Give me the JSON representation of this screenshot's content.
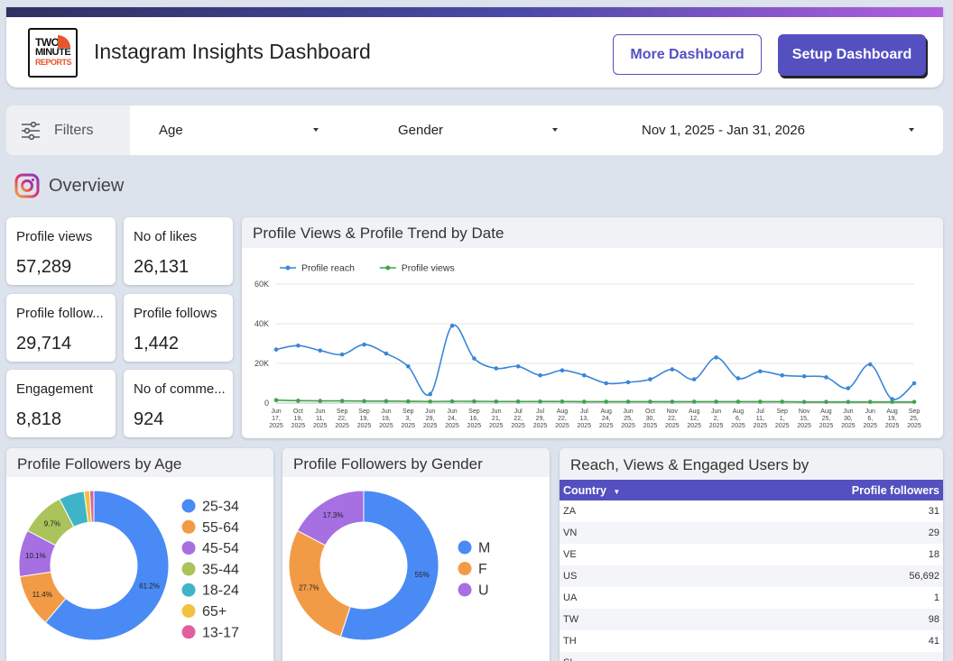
{
  "header": {
    "logo_lines": [
      "TWO",
      "MINUTE",
      "REPORTS"
    ],
    "title": "Instagram Insights Dashboard",
    "more_button": "More Dashboard",
    "setup_button": "Setup Dashboard"
  },
  "filters": {
    "label": "Filters",
    "age": "Age",
    "gender": "Gender",
    "date_range": "Nov 1, 2025 - Jan 31, 2026"
  },
  "overview": {
    "title": "Overview"
  },
  "kpis": [
    {
      "label": "Profile views",
      "value": "57,289"
    },
    {
      "label": "No of likes",
      "value": "26,131"
    },
    {
      "label": "Profile follow...",
      "value": "29,714"
    },
    {
      "label": "Profile follows",
      "value": "1,442"
    },
    {
      "label": "Engagement",
      "value": "8,818"
    },
    {
      "label": "No of comme...",
      "value": "924"
    }
  ],
  "trend_panel": {
    "title": "Profile Views & Profile Trend by Date"
  },
  "age_panel": {
    "title": "Profile Followers by Age"
  },
  "gender_panel": {
    "title": "Profile Followers by Gender"
  },
  "geo_panel": {
    "title": "Reach, Views & Engaged Users by",
    "col_country": "Country",
    "col_followers": "Profile followers",
    "rows": [
      {
        "country": "ZA",
        "followers": "31"
      },
      {
        "country": "VN",
        "followers": "29"
      },
      {
        "country": "VE",
        "followers": "18"
      },
      {
        "country": "US",
        "followers": "56,692"
      },
      {
        "country": "UA",
        "followers": "1"
      },
      {
        "country": "TW",
        "followers": "98"
      },
      {
        "country": "TH",
        "followers": "41"
      },
      {
        "country": "SL",
        "followers": ""
      }
    ]
  },
  "colors": {
    "accent": "#5450c0",
    "reach": "#3a86d8",
    "views": "#3fa34d"
  },
  "chart_data": [
    {
      "type": "line",
      "title": "Profile Views & Profile Trend by Date",
      "x": [
        "Jun 17, 2025",
        "Oct 19, 2025",
        "Jun 11, 2025",
        "Sep 22, 2025",
        "Sep 19, 2025",
        "Jun 19, 2025",
        "Sep 3, 2025",
        "Jun 29, 2025",
        "Jun 24, 2025",
        "Sep 16, 2025",
        "Jun 21, 2025",
        "Jul 22, 2025",
        "Jul 29, 2025",
        "Aug 22, 2025",
        "Jul 13, 2025",
        "Aug 24, 2025",
        "Jun 25, 2025",
        "Oct 30, 2025",
        "Nov 22, 2025",
        "Aug 12, 2025",
        "Jun 2, 2025",
        "Aug 6, 2025",
        "Jul 11, 2025",
        "Sep 1, 2025",
        "Nov 15, 2025",
        "Aug 25, 2025",
        "Jun 30, 2025",
        "Jun 6, 2025",
        "Aug 19, 2025",
        "Sep 25, 2025"
      ],
      "series": [
        {
          "name": "Profile reach",
          "values": [
            27000,
            29000,
            26500,
            24500,
            29500,
            25000,
            18500,
            4500,
            39000,
            22500,
            17500,
            18500,
            14000,
            16500,
            14000,
            10000,
            10500,
            12000,
            17000,
            12000,
            23000,
            12500,
            16000,
            14000,
            13500,
            13000,
            7500,
            19500,
            2000,
            10000
          ]
        },
        {
          "name": "Profile views",
          "values": [
            1500,
            1200,
            1100,
            1100,
            1000,
            1000,
            900,
            800,
            900,
            900,
            800,
            800,
            800,
            800,
            700,
            700,
            700,
            700,
            700,
            700,
            700,
            700,
            700,
            700,
            600,
            600,
            600,
            600,
            600,
            600
          ]
        }
      ],
      "ylim": [
        0,
        60000
      ],
      "yticks": [
        "0",
        "20K",
        "40K",
        "60K"
      ],
      "grid": true,
      "legend": "top-left"
    },
    {
      "type": "pie",
      "title": "Profile Followers by Age",
      "categories": [
        "25-34",
        "55-64",
        "45-54",
        "35-44",
        "18-24",
        "65+",
        "13-17"
      ],
      "values": [
        61.2,
        11.4,
        10.1,
        9.7,
        5.5,
        1.2,
        0.9
      ],
      "labels": [
        "61.2%",
        "11.4%",
        "10.1%",
        "9.7%",
        "",
        "",
        ""
      ],
      "colors": [
        "#4a8af4",
        "#f29b46",
        "#a66fe2",
        "#aac35b",
        "#3fb4c8",
        "#f0c240",
        "#e0609e"
      ],
      "legend": "right"
    },
    {
      "type": "pie",
      "title": "Profile Followers by Gender",
      "categories": [
        "M",
        "F",
        "U"
      ],
      "values": [
        55,
        27.7,
        17.3
      ],
      "labels": [
        "55%",
        "27.7%",
        "17.3%"
      ],
      "colors": [
        "#4a8af4",
        "#f29b46",
        "#a66fe2"
      ],
      "legend": "right"
    }
  ]
}
